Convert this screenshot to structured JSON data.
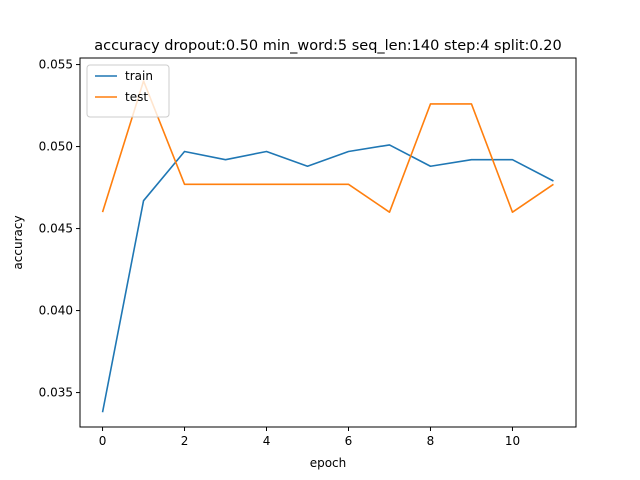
{
  "chart_data": {
    "type": "line",
    "title": "accuracy dropout:0.50 min_word:5 seq_len:140 step:4 split:0.20",
    "xlabel": "epoch",
    "ylabel": "accuracy",
    "xlim": [
      -0.55,
      11.55
    ],
    "ylim": [
      0.0329,
      0.0554
    ],
    "xticks": [
      0,
      2,
      4,
      6,
      8,
      10
    ],
    "xtick_labels": [
      "0",
      "2",
      "4",
      "6",
      "8",
      "10"
    ],
    "yticks": [
      0.035,
      0.04,
      0.045,
      0.05,
      0.055
    ],
    "ytick_labels": [
      "0.035",
      "0.040",
      "0.045",
      "0.050",
      "0.055"
    ],
    "grid": false,
    "legend_position": "upper-left",
    "x": [
      0,
      1,
      2,
      3,
      4,
      5,
      6,
      7,
      8,
      9,
      10,
      11
    ],
    "series": [
      {
        "name": "train",
        "color": "#1f77b4",
        "values": [
          0.0338,
          0.0467,
          0.0497,
          0.0492,
          0.0497,
          0.0488,
          0.0497,
          0.0501,
          0.0488,
          0.0492,
          0.0492,
          0.0479
        ]
      },
      {
        "name": "test",
        "color": "#ff7f0e",
        "values": [
          0.046,
          0.054,
          0.0477,
          0.0477,
          0.0477,
          0.0477,
          0.0477,
          0.046,
          0.0526,
          0.0526,
          0.046,
          0.0477
        ]
      }
    ]
  }
}
